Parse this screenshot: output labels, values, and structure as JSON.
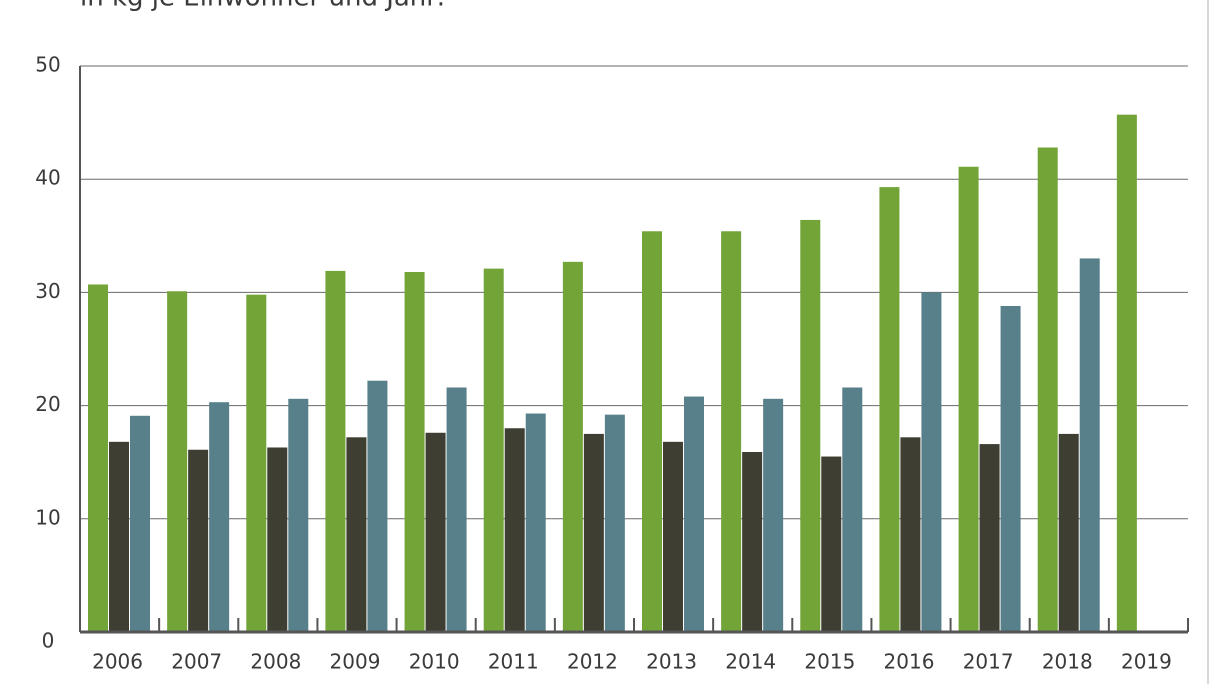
{
  "chart_data": {
    "type": "bar",
    "subtitle": "in kg je Einwohner und Jahr:",
    "categories": [
      "2006",
      "2007",
      "2008",
      "2009",
      "2010",
      "2011",
      "2012",
      "2013",
      "2014",
      "2015",
      "2016",
      "2017",
      "2018",
      "2019"
    ],
    "series": [
      {
        "color": "#72a437",
        "values": [
          30.7,
          30.1,
          29.8,
          31.9,
          31.8,
          32.1,
          32.7,
          35.4,
          35.4,
          36.4,
          39.3,
          41.1,
          42.8,
          45.7
        ]
      },
      {
        "color": "#3e3e32",
        "values": [
          16.8,
          16.1,
          16.3,
          17.2,
          17.6,
          18.0,
          17.5,
          16.8,
          15.9,
          15.5,
          17.2,
          16.6,
          17.5,
          null
        ]
      },
      {
        "color": "#58808a",
        "values": [
          19.1,
          20.3,
          20.6,
          22.2,
          21.6,
          19.3,
          19.2,
          20.8,
          20.6,
          21.6,
          30.0,
          28.8,
          33.0,
          null
        ]
      }
    ],
    "ylim": [
      0,
      50
    ],
    "yticks": [
      0,
      10,
      20,
      30,
      40,
      50
    ],
    "grid": true
  }
}
